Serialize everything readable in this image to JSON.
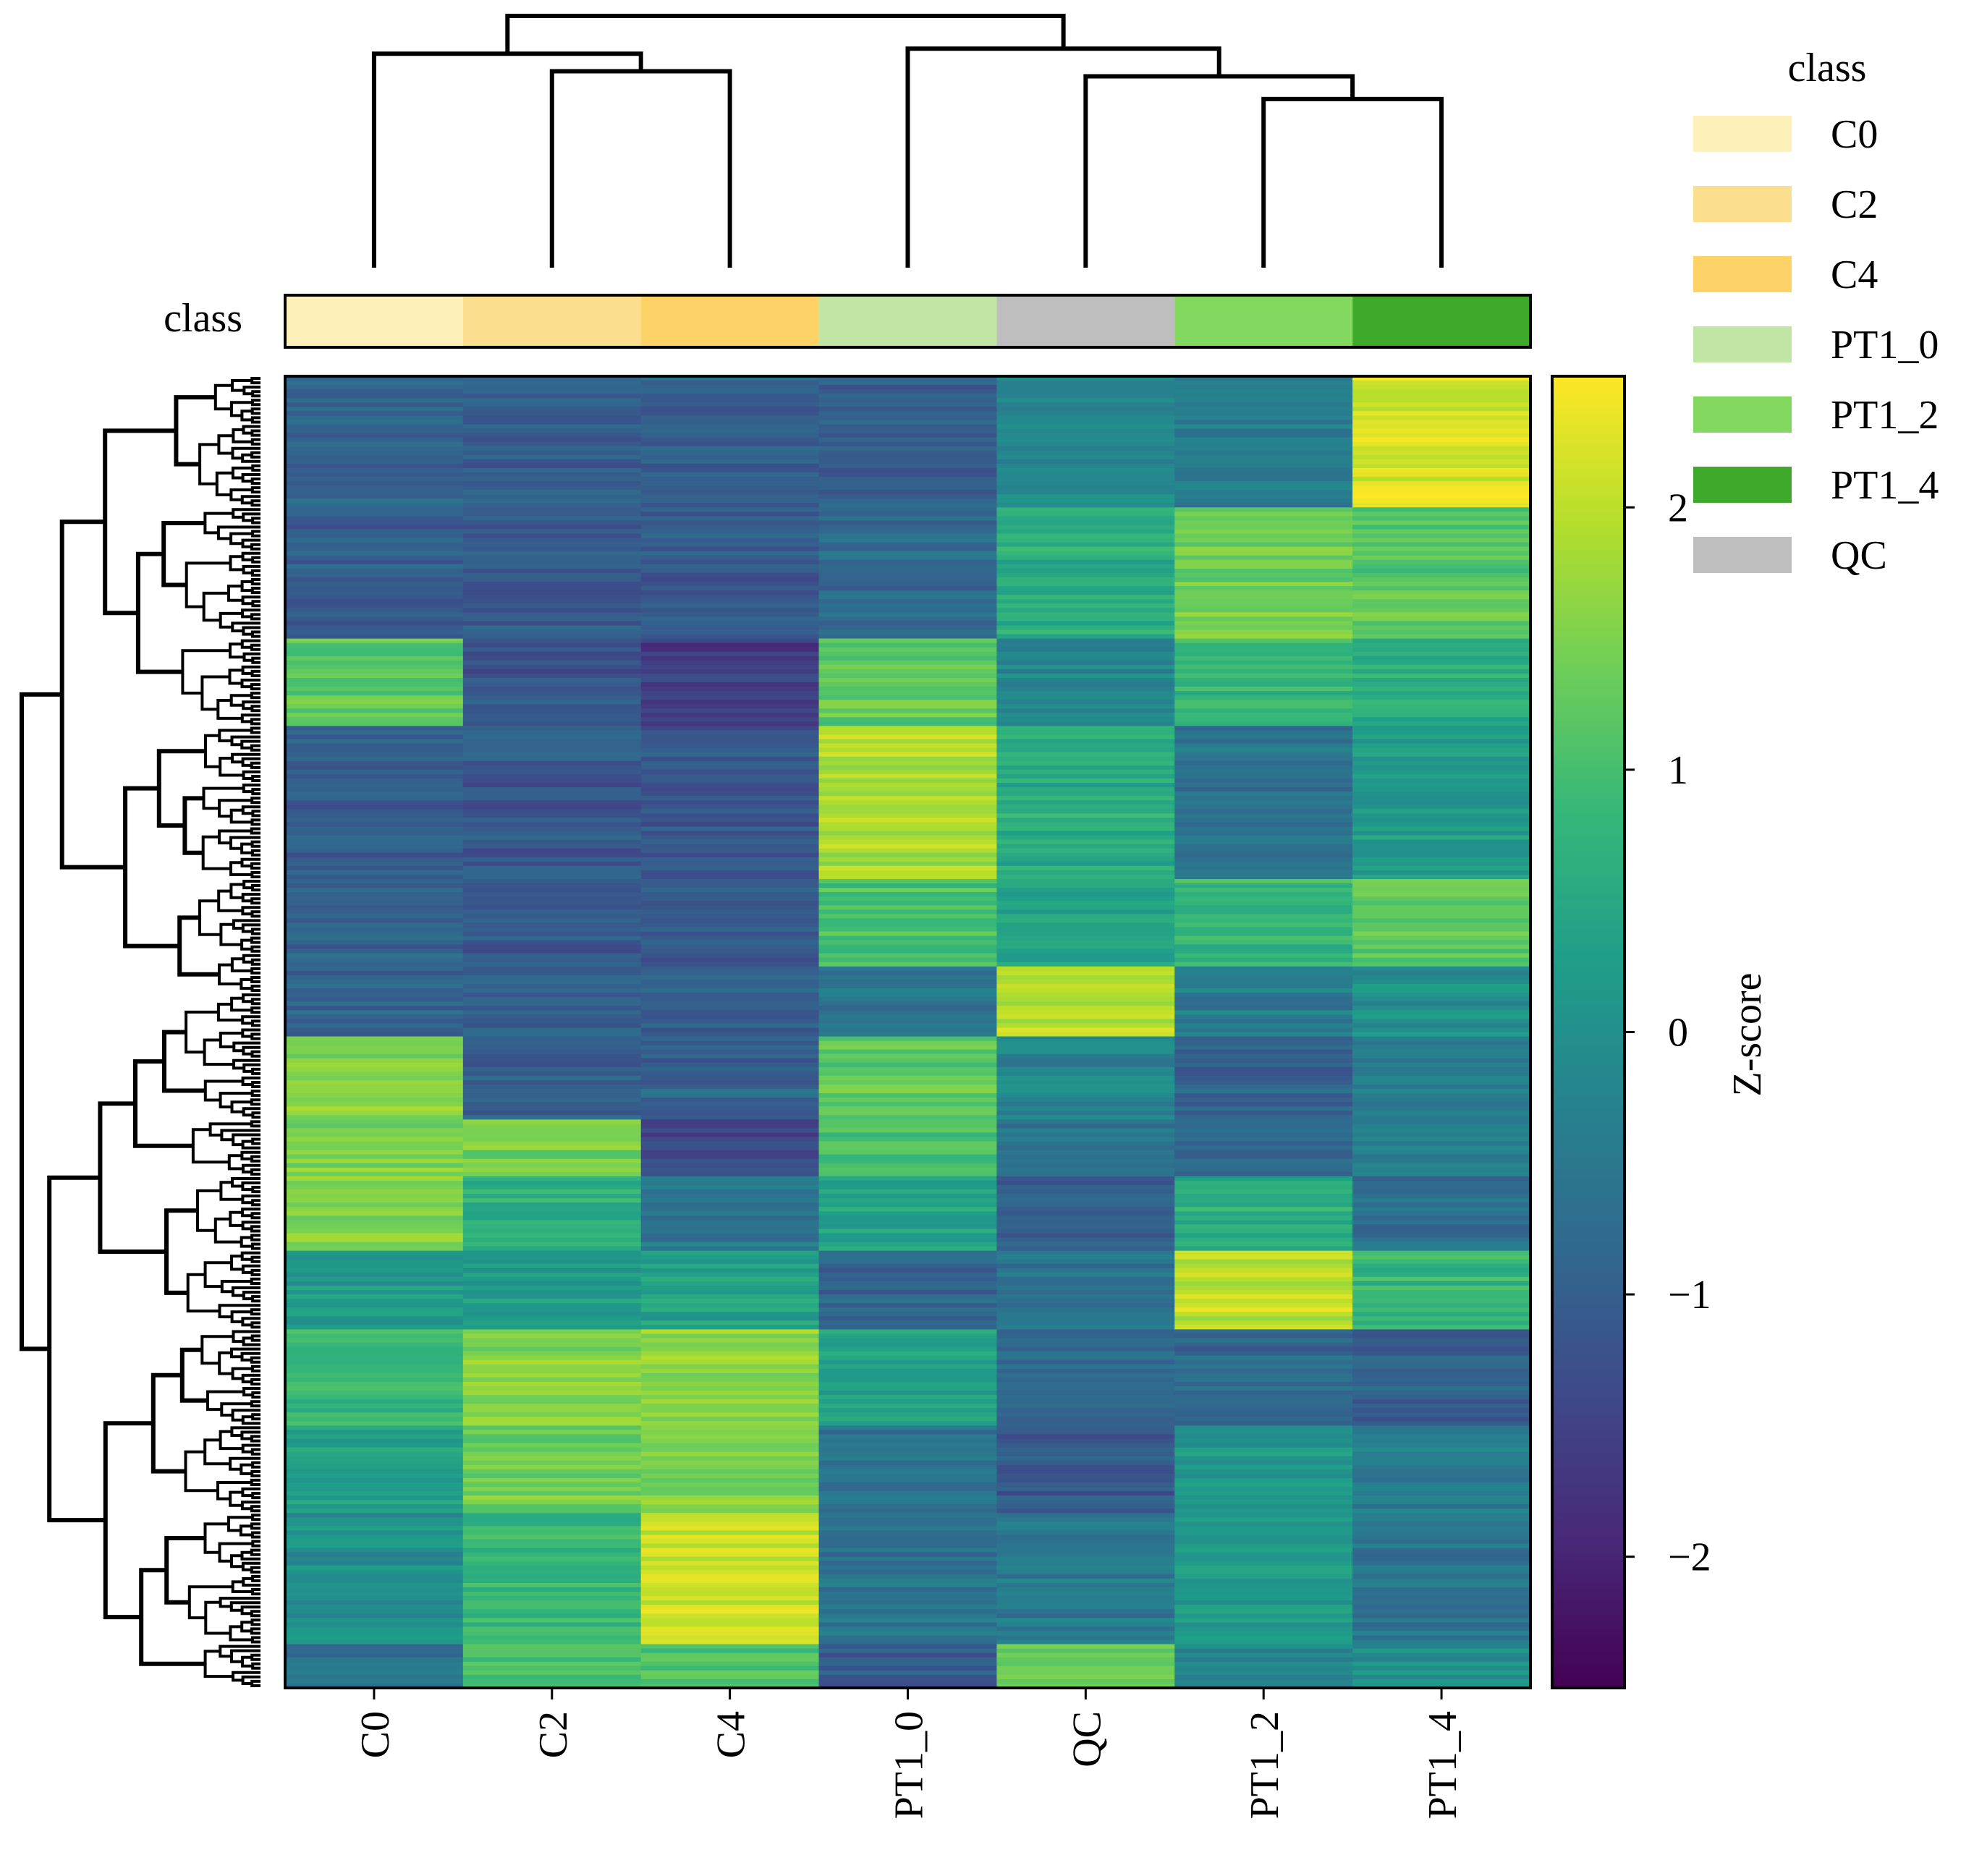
{
  "chart_data": {
    "type": "heatmap",
    "title": "",
    "columns": [
      "C0",
      "C2",
      "C4",
      "PT1_0",
      "QC",
      "PT1_2",
      "PT1_4"
    ],
    "column_class": [
      "C0",
      "C2",
      "C4",
      "PT1_0",
      "QC",
      "PT1_2",
      "PT1_4"
    ],
    "row_count": 300,
    "value_range": [
      -2.5,
      2.5
    ],
    "colormap": "viridis",
    "colormap_stops": [
      "#440154",
      "#482878",
      "#3e4989",
      "#31688e",
      "#26828e",
      "#1f9e89",
      "#35b779",
      "#6ece58",
      "#b5de2b",
      "#fde725"
    ],
    "row_blocks": [
      {
        "from": 0,
        "to": 30,
        "values": [
          -0.9,
          -1.0,
          -1.0,
          -1.0,
          -0.2,
          -0.4,
          2.2
        ]
      },
      {
        "from": 30,
        "to": 60,
        "values": [
          -1.0,
          -1.1,
          -1.1,
          -0.8,
          0.6,
          1.4,
          1.2
        ]
      },
      {
        "from": 60,
        "to": 80,
        "values": [
          1.2,
          -1.2,
          -1.6,
          1.2,
          -0.2,
          0.8,
          0.6
        ]
      },
      {
        "from": 80,
        "to": 115,
        "values": [
          -1.0,
          -1.1,
          -1.1,
          1.9,
          0.6,
          -0.6,
          0.2
        ]
      },
      {
        "from": 115,
        "to": 135,
        "values": [
          -0.9,
          -1.1,
          -1.1,
          1.0,
          0.4,
          0.8,
          1.2
        ]
      },
      {
        "from": 135,
        "to": 151,
        "values": [
          -0.9,
          -1.0,
          -1.0,
          -0.6,
          2.0,
          -0.4,
          0.0
        ]
      },
      {
        "from": 151,
        "to": 170,
        "values": [
          1.6,
          -0.9,
          -0.9,
          1.2,
          -0.2,
          -1.0,
          -0.4
        ]
      },
      {
        "from": 170,
        "to": 183,
        "values": [
          1.5,
          1.4,
          -1.4,
          1.0,
          -0.6,
          -0.9,
          -0.4
        ]
      },
      {
        "from": 183,
        "to": 200,
        "values": [
          1.6,
          0.6,
          -0.5,
          0.4,
          -1.0,
          0.6,
          -0.7
        ]
      },
      {
        "from": 200,
        "to": 218,
        "values": [
          0.2,
          0.2,
          0.4,
          -0.9,
          -0.6,
          2.0,
          0.8
        ]
      },
      {
        "from": 218,
        "to": 240,
        "values": [
          0.8,
          1.6,
          1.6,
          0.4,
          -0.8,
          -0.8,
          -1.0
        ]
      },
      {
        "from": 240,
        "to": 260,
        "values": [
          0.3,
          1.4,
          1.5,
          -0.6,
          -1.1,
          0.2,
          -0.4
        ]
      },
      {
        "from": 260,
        "to": 290,
        "values": [
          0.0,
          0.8,
          2.1,
          -0.6,
          -0.5,
          0.2,
          -0.6
        ]
      },
      {
        "from": 290,
        "to": 300,
        "values": [
          -0.6,
          1.0,
          1.1,
          -1.0,
          1.4,
          -0.2,
          0.0
        ]
      }
    ],
    "row_label": "class",
    "class_legend": {
      "title": "class",
      "entries": [
        {
          "label": "C0",
          "color": "#fdf0b8"
        },
        {
          "label": "C2",
          "color": "#fcde8f"
        },
        {
          "label": "C4",
          "color": "#fdd267"
        },
        {
          "label": "PT1_0",
          "color": "#c0e5a4"
        },
        {
          "label": "PT1_2",
          "color": "#83d85f"
        },
        {
          "label": "PT1_4",
          "color": "#3fa92c"
        },
        {
          "label": "QC",
          "color": "#bebebe"
        }
      ]
    },
    "colorbar": {
      "label": "Z-score",
      "ticks": [
        {
          "value": 2,
          "label": "2"
        },
        {
          "value": 1,
          "label": "1"
        },
        {
          "value": 0,
          "label": "0"
        },
        {
          "value": -1,
          "label": "−1"
        },
        {
          "value": -2,
          "label": "−2"
        }
      ]
    },
    "column_dendrogram": [
      {
        "left": "C2",
        "right": "C4",
        "height": 0.78
      },
      {
        "left": "C0",
        "right": "C2+C4",
        "height": 0.85
      },
      {
        "left": "PT1_2",
        "right": "PT1_4",
        "height": 0.67
      },
      {
        "left": "QC",
        "right": "PT1_2+PT1_4",
        "height": 0.76
      },
      {
        "left": "PT1_0",
        "right": "QC+PT1_2+PT1_4",
        "height": 0.87
      },
      {
        "left": "C-group",
        "right": "PT-group",
        "height": 1.0
      }
    ]
  }
}
